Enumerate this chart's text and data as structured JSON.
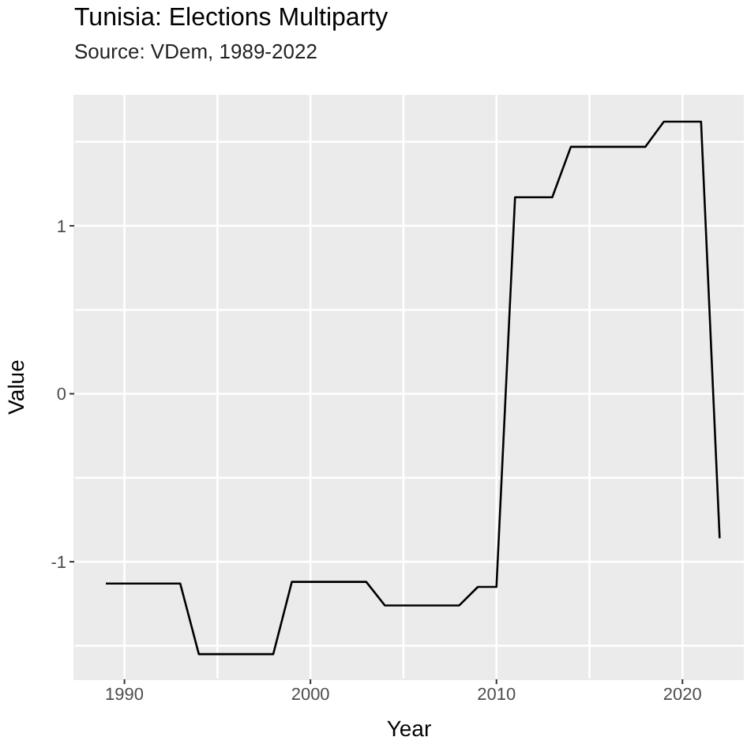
{
  "chart_data": {
    "type": "line",
    "title": "Tunisia: Elections Multiparty",
    "subtitle": "Source: VDem, 1989-2022",
    "xlabel": "Year",
    "ylabel": "Value",
    "x": [
      1989,
      1990,
      1991,
      1992,
      1993,
      1994,
      1995,
      1996,
      1997,
      1998,
      1999,
      2000,
      2001,
      2002,
      2003,
      2004,
      2005,
      2006,
      2007,
      2008,
      2009,
      2010,
      2011,
      2012,
      2013,
      2014,
      2015,
      2016,
      2017,
      2018,
      2019,
      2020,
      2021,
      2022
    ],
    "series": [
      {
        "color": "#000000",
        "values": [
          -1.13,
          -1.13,
          -1.13,
          -1.13,
          -1.13,
          -1.55,
          -1.55,
          -1.55,
          -1.55,
          -1.55,
          -1.12,
          -1.12,
          -1.12,
          -1.12,
          -1.12,
          -1.26,
          -1.26,
          -1.26,
          -1.26,
          -1.26,
          -1.15,
          -1.15,
          1.17,
          1.17,
          1.17,
          1.47,
          1.47,
          1.47,
          1.47,
          1.47,
          1.62,
          1.62,
          1.62,
          -0.86
        ]
      }
    ],
    "xlim": [
      1987.3,
      2023.3
    ],
    "ylim": [
      -1.7,
      1.78
    ],
    "xticks": [
      1990,
      2000,
      2010,
      2020
    ],
    "yticks": [
      -1,
      0,
      1
    ],
    "grid": true,
    "legend": false
  }
}
